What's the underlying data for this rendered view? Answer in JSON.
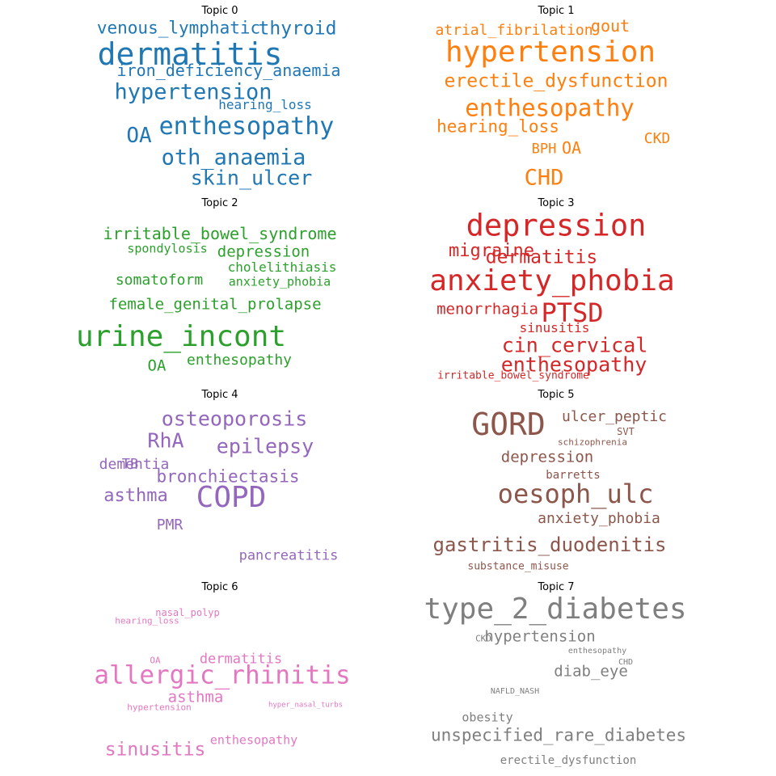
{
  "chart_data": [
    {
      "type": "wordcloud",
      "title": "Topic 0",
      "color": "#1f77b4",
      "words": [
        {
          "text": "dermatitis",
          "weight": 38
        },
        {
          "text": "enthesopathy",
          "weight": 30
        },
        {
          "text": "hypertension",
          "weight": 27
        },
        {
          "text": "oth_anaemia",
          "weight": 27
        },
        {
          "text": "OA",
          "weight": 26
        },
        {
          "text": "skin_ulcer",
          "weight": 25
        },
        {
          "text": "thyroid",
          "weight": 23
        },
        {
          "text": "venous_lymphatic",
          "weight": 21
        },
        {
          "text": "iron_deficiency_anaemia",
          "weight": 20
        },
        {
          "text": "hearing_loss",
          "weight": 16
        }
      ]
    },
    {
      "type": "wordcloud",
      "title": "Topic 1",
      "color": "#ff7f0e",
      "words": [
        {
          "text": "hypertension",
          "weight": 36
        },
        {
          "text": "enthesopathy",
          "weight": 29
        },
        {
          "text": "CHD",
          "weight": 27
        },
        {
          "text": "erectile_dysfunction",
          "weight": 23
        },
        {
          "text": "hearing_loss",
          "weight": 21
        },
        {
          "text": "gout",
          "weight": 20
        },
        {
          "text": "OA",
          "weight": 20
        },
        {
          "text": "atrial_fibrilation",
          "weight": 18
        },
        {
          "text": "CKD",
          "weight": 18
        },
        {
          "text": "BPH",
          "weight": 17
        }
      ]
    },
    {
      "type": "wordcloud",
      "title": "Topic 2",
      "color": "#2ca02c",
      "words": [
        {
          "text": "urine_incont",
          "weight": 36
        },
        {
          "text": "irritable_bowel_syndrome",
          "weight": 20
        },
        {
          "text": "female_genital_prolapse",
          "weight": 19
        },
        {
          "text": "depression",
          "weight": 19
        },
        {
          "text": "OA",
          "weight": 19
        },
        {
          "text": "somatoform",
          "weight": 18
        },
        {
          "text": "enthesopathy",
          "weight": 18
        },
        {
          "text": "cholelithiasis",
          "weight": 16
        },
        {
          "text": "spondylosis",
          "weight": 15
        },
        {
          "text": "anxiety_phobia",
          "weight": 15
        }
      ]
    },
    {
      "type": "wordcloud",
      "title": "Topic 3",
      "color": "#d62728",
      "words": [
        {
          "text": "depression",
          "weight": 37
        },
        {
          "text": "anxiety_phobia",
          "weight": 36
        },
        {
          "text": "PTSD",
          "weight": 32
        },
        {
          "text": "enthesopathy",
          "weight": 25
        },
        {
          "text": "cin_cervical",
          "weight": 25
        },
        {
          "text": "dermatitis",
          "weight": 23
        },
        {
          "text": "migraine",
          "weight": 22
        },
        {
          "text": "menorrhagia",
          "weight": 19
        },
        {
          "text": "sinusitis",
          "weight": 16
        },
        {
          "text": "irritable_bowel_syndrome",
          "weight": 13
        }
      ]
    },
    {
      "type": "wordcloud",
      "title": "Topic 4",
      "color": "#9467bd",
      "words": [
        {
          "text": "COPD",
          "weight": 36
        },
        {
          "text": "osteoporosis",
          "weight": 25
        },
        {
          "text": "epilepsy",
          "weight": 25
        },
        {
          "text": "RhA",
          "weight": 25
        },
        {
          "text": "asthma",
          "weight": 22
        },
        {
          "text": "bronchiectasis",
          "weight": 21
        },
        {
          "text": "dementia",
          "weight": 18
        },
        {
          "text": "PMR",
          "weight": 18
        },
        {
          "text": "TB",
          "weight": 17
        },
        {
          "text": "pancreatitis",
          "weight": 17
        }
      ]
    },
    {
      "type": "wordcloud",
      "title": "Topic 5",
      "color": "#8c564b",
      "words": [
        {
          "text": "GORD",
          "weight": 38
        },
        {
          "text": "oesoph_ulc",
          "weight": 32
        },
        {
          "text": "gastritis_duodenitis",
          "weight": 24
        },
        {
          "text": "depression",
          "weight": 19
        },
        {
          "text": "ulcer_peptic",
          "weight": 18
        },
        {
          "text": "anxiety_phobia",
          "weight": 18
        },
        {
          "text": "barretts",
          "weight": 14
        },
        {
          "text": "substance_misuse",
          "weight": 13
        },
        {
          "text": "SVT",
          "weight": 12
        },
        {
          "text": "schizophrenia",
          "weight": 11
        }
      ]
    },
    {
      "type": "wordcloud",
      "title": "Topic 6",
      "color": "#e377c2",
      "words": [
        {
          "text": "allergic_rhinitis",
          "weight": 31
        },
        {
          "text": "sinusitis",
          "weight": 23
        },
        {
          "text": "asthma",
          "weight": 19
        },
        {
          "text": "dermatitis",
          "weight": 17
        },
        {
          "text": "enthesopathy",
          "weight": 15
        },
        {
          "text": "nasal_polyp",
          "weight": 12
        },
        {
          "text": "hearing_loss",
          "weight": 11
        },
        {
          "text": "OA",
          "weight": 11
        },
        {
          "text": "hypertension",
          "weight": 11
        },
        {
          "text": "hyper_nasal_turbs",
          "weight": 9
        }
      ]
    },
    {
      "type": "wordcloud",
      "title": "Topic 7",
      "color": "#7f7f7f",
      "words": [
        {
          "text": "type_2_diabetes",
          "weight": 36
        },
        {
          "text": "unspecified_rare_diabetes",
          "weight": 21
        },
        {
          "text": "hypertension",
          "weight": 19
        },
        {
          "text": "diab_eye",
          "weight": 19
        },
        {
          "text": "obesity",
          "weight": 15
        },
        {
          "text": "erectile_dysfunction",
          "weight": 14
        },
        {
          "text": "CKD",
          "weight": 11
        },
        {
          "text": "enthesopathy",
          "weight": 10
        },
        {
          "text": "CHD",
          "weight": 10
        },
        {
          "text": "NAFLD_NASH",
          "weight": 10
        }
      ]
    }
  ]
}
